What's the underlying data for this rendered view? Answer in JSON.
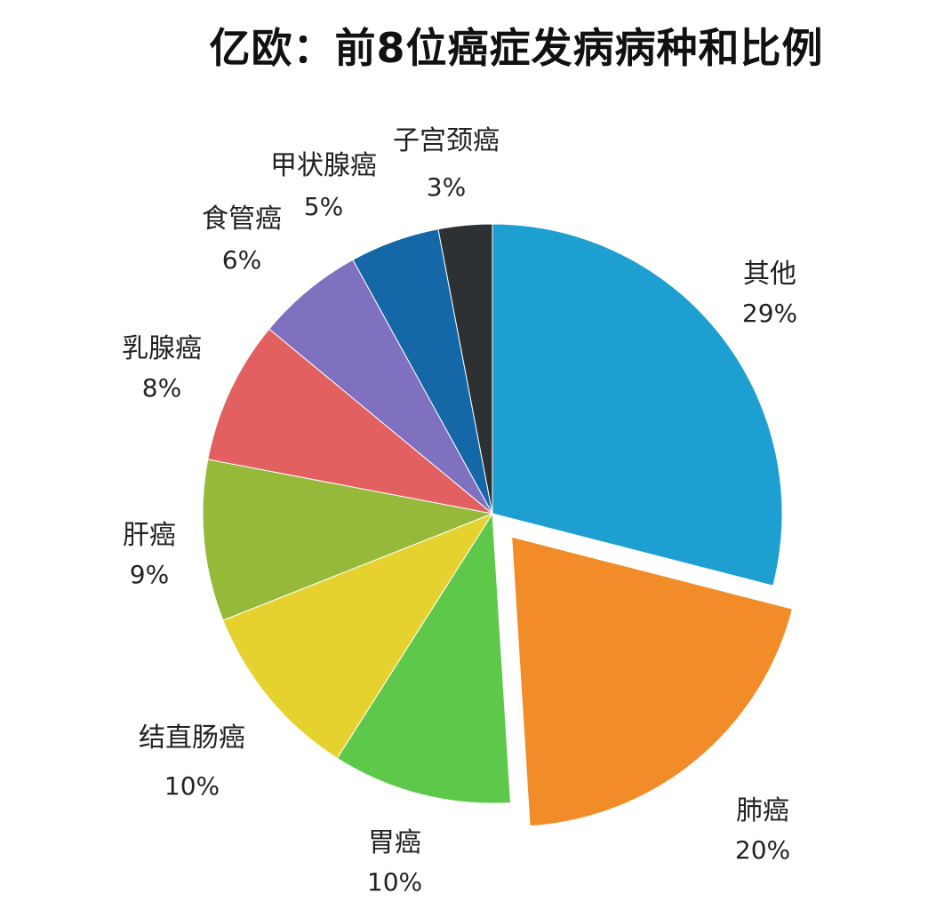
{
  "chart_data": {
    "type": "pie",
    "title": "亿欧：前8位癌症发病病种和比例",
    "slices": [
      {
        "label": "其他",
        "pct_text": "29%",
        "value": 29,
        "color": "#1e9fd2",
        "exploded": false
      },
      {
        "label": "肺癌",
        "pct_text": "20%",
        "value": 20,
        "color": "#f28c28",
        "exploded": true
      },
      {
        "label": "胃癌",
        "pct_text": "10%",
        "value": 10,
        "color": "#5ec84a",
        "exploded": false
      },
      {
        "label": "结直肠癌",
        "pct_text": "10%",
        "value": 10,
        "color": "#e6d22e",
        "exploded": false
      },
      {
        "label": "肝癌",
        "pct_text": "9%",
        "value": 9,
        "color": "#96b93a",
        "exploded": false
      },
      {
        "label": "乳腺癌",
        "pct_text": "8%",
        "value": 8,
        "color": "#e36060",
        "exploded": false
      },
      {
        "label": "食管癌",
        "pct_text": "6%",
        "value": 6,
        "color": "#8070c0",
        "exploded": false
      },
      {
        "label": "甲状腺癌",
        "pct_text": "5%",
        "value": 5,
        "color": "#1468a8",
        "exploded": false
      },
      {
        "label": "子宫颈癌",
        "pct_text": "3%",
        "value": 3,
        "color": "#2e3134",
        "exploded": false
      }
    ]
  }
}
